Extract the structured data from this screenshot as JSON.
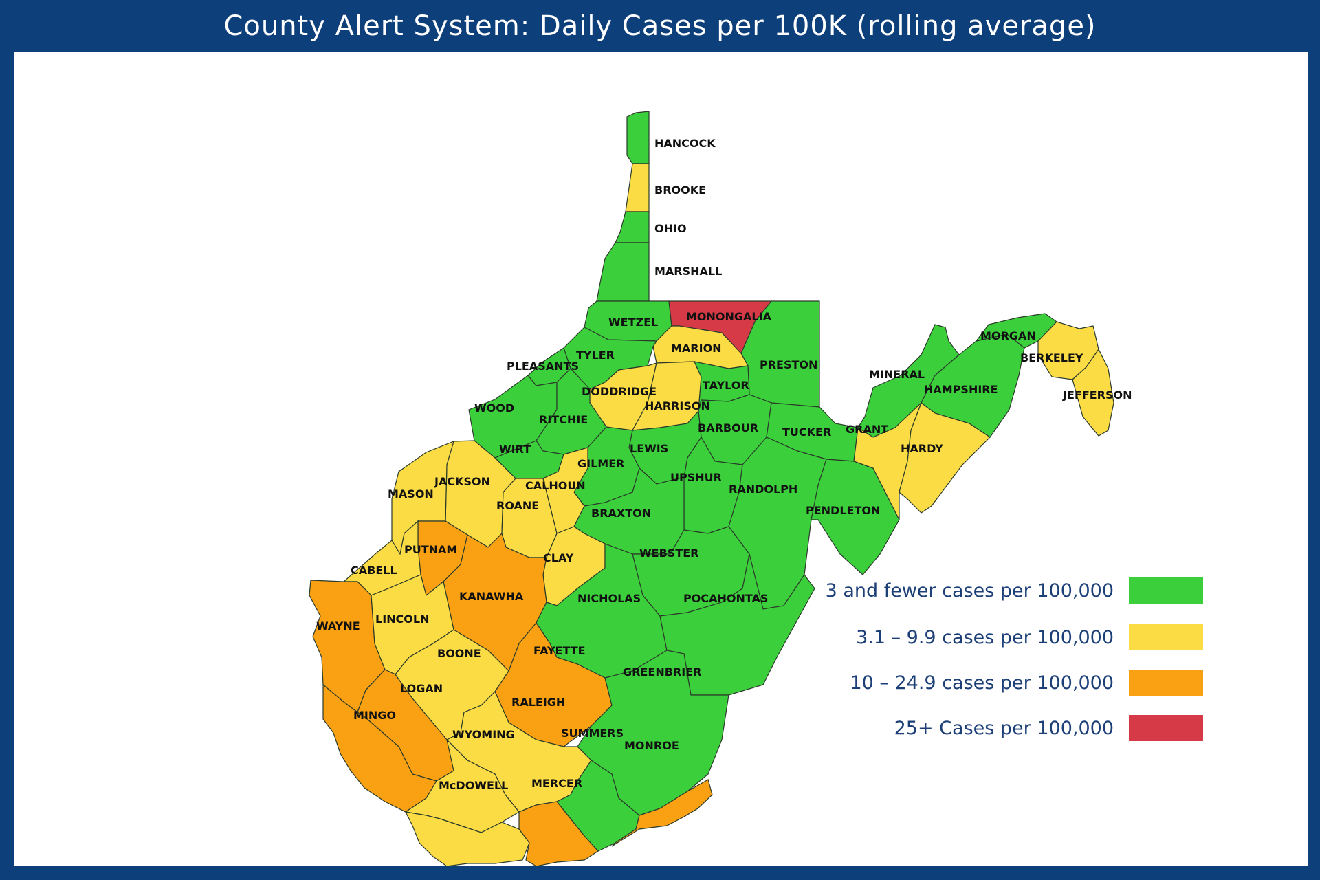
{
  "title": "County Alert System: Daily Cases per 100K (rolling average)",
  "colors": {
    "green": "#3ccf3c",
    "yellow": "#fcdc45",
    "orange": "#f9a013",
    "red": "#d63a47"
  },
  "legend": [
    {
      "label": "3 and fewer cases per 100,000",
      "color": "#3ccf3c"
    },
    {
      "label": "3.1 – 9.9 cases per 100,000",
      "color": "#fcdc45"
    },
    {
      "label": "10 – 24.9 cases per 100,000",
      "color": "#f9a013"
    },
    {
      "label": "25+ Cases per 100,000",
      "color": "#d63a47"
    }
  ],
  "counties": {
    "hancock": {
      "name": "HANCOCK",
      "level": "green"
    },
    "brooke": {
      "name": "BROOKE",
      "level": "yellow"
    },
    "ohio": {
      "name": "OHIO",
      "level": "green"
    },
    "marshall": {
      "name": "MARSHALL",
      "level": "green"
    },
    "wetzel": {
      "name": "WETZEL",
      "level": "green"
    },
    "monongalia": {
      "name": "MONONGALIA",
      "level": "red"
    },
    "preston": {
      "name": "PRESTON",
      "level": "green"
    },
    "marion": {
      "name": "MARION",
      "level": "yellow"
    },
    "tyler": {
      "name": "TYLER",
      "level": "green"
    },
    "pleasants": {
      "name": "PLEASANTS",
      "level": "green"
    },
    "doddridge": {
      "name": "DODDRIDGE",
      "level": "yellow"
    },
    "harrison": {
      "name": "HARRISON",
      "level": "yellow"
    },
    "taylor": {
      "name": "TAYLOR",
      "level": "green"
    },
    "wood": {
      "name": "WOOD",
      "level": "green"
    },
    "ritchie": {
      "name": "RITCHIE",
      "level": "green"
    },
    "barbour": {
      "name": "BARBOUR",
      "level": "green"
    },
    "tucker": {
      "name": "TUCKER",
      "level": "green"
    },
    "wirt": {
      "name": "WIRT",
      "level": "green"
    },
    "lewis": {
      "name": "LEWIS",
      "level": "green"
    },
    "gilmer": {
      "name": "GILMER",
      "level": "green"
    },
    "calhoun": {
      "name": "CALHOUN",
      "level": "yellow"
    },
    "jackson": {
      "name": "JACKSON",
      "level": "yellow"
    },
    "mason": {
      "name": "MASON",
      "level": "yellow"
    },
    "roane": {
      "name": "ROANE",
      "level": "yellow"
    },
    "upshur": {
      "name": "UPSHUR",
      "level": "green"
    },
    "randolph": {
      "name": "RANDOLPH",
      "level": "green"
    },
    "braxton": {
      "name": "BRAXTON",
      "level": "green"
    },
    "pendleton": {
      "name": "PENDLETON",
      "level": "green"
    },
    "putnam": {
      "name": "PUTNAM",
      "level": "orange"
    },
    "clay": {
      "name": "CLAY",
      "level": "yellow"
    },
    "webster": {
      "name": "WEBSTER",
      "level": "green"
    },
    "cabell": {
      "name": "CABELL",
      "level": "yellow"
    },
    "kanawha": {
      "name": "KANAWHA",
      "level": "orange"
    },
    "nicholas": {
      "name": "NICHOLAS",
      "level": "green"
    },
    "pocahontas": {
      "name": "POCAHONTAS",
      "level": "green"
    },
    "wayne": {
      "name": "WAYNE",
      "level": "orange"
    },
    "lincoln": {
      "name": "LINCOLN",
      "level": "yellow"
    },
    "boone": {
      "name": "BOONE",
      "level": "yellow"
    },
    "fayette": {
      "name": "FAYETTE",
      "level": "orange"
    },
    "greenbrier": {
      "name": "GREENBRIER",
      "level": "green"
    },
    "logan": {
      "name": "LOGAN",
      "level": "orange"
    },
    "mingo": {
      "name": "MINGO",
      "level": "orange"
    },
    "raleigh": {
      "name": "RALEIGH",
      "level": "yellow"
    },
    "wyoming": {
      "name": "WYOMING",
      "level": "yellow"
    },
    "summers": {
      "name": "SUMMERS",
      "level": "green"
    },
    "monroe": {
      "name": "MONROE",
      "level": "orange"
    },
    "mcdowell": {
      "name": "McDOWELL",
      "level": "yellow"
    },
    "mercer": {
      "name": "MERCER",
      "level": "orange"
    },
    "mineral": {
      "name": "MINERAL",
      "level": "green"
    },
    "hampshire": {
      "name": "HAMPSHIRE",
      "level": "green"
    },
    "morgan": {
      "name": "MORGAN",
      "level": "green"
    },
    "berkeley": {
      "name": "BERKELEY",
      "level": "yellow"
    },
    "jefferson": {
      "name": "JEFFERSON",
      "level": "yellow"
    },
    "grant": {
      "name": "GRANT",
      "level": "yellow"
    },
    "hardy": {
      "name": "HARDY",
      "level": "yellow"
    }
  }
}
